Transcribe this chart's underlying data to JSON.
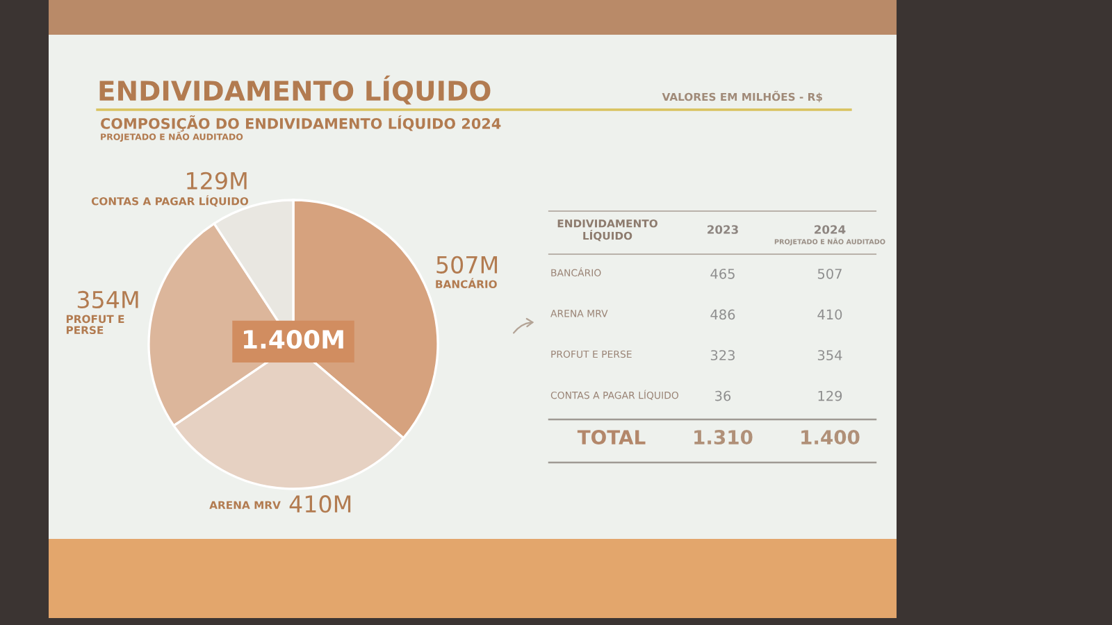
{
  "chart_data": [
    {
      "type": "pie",
      "title": "ENDIVIDAMENTO LÍQUIDO",
      "subtitle": "COMPOSIÇÃO DO ENDIVIDAMENTO LÍQUIDO 2024",
      "categories": [
        "BANCÁRIO",
        "ARENA MRV",
        "PROFUT E PERSE",
        "CONTAS A PAGAR LÍQUIDO"
      ],
      "values": [
        507,
        410,
        354,
        129
      ],
      "value_labels": [
        "507M",
        "410M",
        "354M",
        "129M"
      ],
      "colors": [
        "#d6a27e",
        "#e6d1c2",
        "#dcb69b",
        "#e9e7e1"
      ],
      "annotations": [
        "PROJETADO E NÃO AUDITADO",
        "VALORES EM MILHÕES - R$",
        "1.400M"
      ]
    },
    {
      "type": "other",
      "ylabel": "ENDIVIDAMENTO LÍQUIDO",
      "categories": [
        "BANCÁRIO",
        "ARENA MRV",
        "PROFUT E PERSE",
        "CONTAS A PAGAR LÍQUIDO"
      ],
      "series": [
        {
          "name": "2023",
          "values": [
            465,
            486,
            323,
            36
          ]
        },
        {
          "name": "2024",
          "values": [
            507,
            410,
            354,
            129
          ]
        }
      ],
      "data_labels": true,
      "totals": [
        "1.310",
        "1.400"
      ],
      "annotations": [
        "PROJETADO E NÃO AUDITADO",
        "TOTAL"
      ]
    }
  ]
}
